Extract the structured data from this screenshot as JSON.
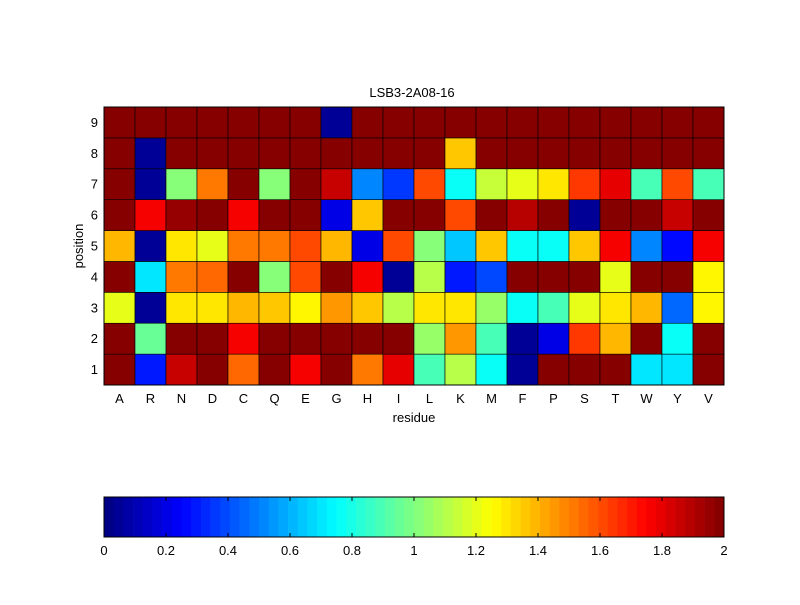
{
  "chart_data": {
    "type": "heatmap",
    "title": "LSB3-2A08-16",
    "xlabel": "residue",
    "ylabel": "position",
    "x_categories": [
      "A",
      "R",
      "N",
      "D",
      "C",
      "Q",
      "E",
      "G",
      "H",
      "I",
      "L",
      "K",
      "M",
      "F",
      "P",
      "S",
      "T",
      "W",
      "Y",
      "V"
    ],
    "y_categories": [
      "1",
      "2",
      "3",
      "4",
      "5",
      "6",
      "7",
      "8",
      "9"
    ],
    "values": [
      [
        2.0,
        0.3,
        1.85,
        2.0,
        1.55,
        2.0,
        1.75,
        2.0,
        1.5,
        1.8,
        0.9,
        1.1,
        0.75,
        0.05,
        2.0,
        2.0,
        2.0,
        0.7,
        0.7,
        2.0
      ],
      [
        2.0,
        0.95,
        2.0,
        2.0,
        1.75,
        2.0,
        2.0,
        2.0,
        2.0,
        2.0,
        1.05,
        1.45,
        0.9,
        0.05,
        0.2,
        1.65,
        1.4,
        2.0,
        0.75,
        2.0
      ],
      [
        1.2,
        0.05,
        1.3,
        1.3,
        1.4,
        1.35,
        1.25,
        1.45,
        1.35,
        1.1,
        1.3,
        1.3,
        1.05,
        0.75,
        0.9,
        1.2,
        1.3,
        1.4,
        0.45,
        1.25
      ],
      [
        2.0,
        0.7,
        1.5,
        1.55,
        2.0,
        1.0,
        1.6,
        2.0,
        1.75,
        0.05,
        1.1,
        0.3,
        0.4,
        2.0,
        2.0,
        2.0,
        1.2,
        2.0,
        2.0,
        1.25
      ],
      [
        1.4,
        0.05,
        1.3,
        1.2,
        1.5,
        1.5,
        1.6,
        1.4,
        0.2,
        1.6,
        1.0,
        0.65,
        1.35,
        0.75,
        0.75,
        1.35,
        1.75,
        0.5,
        0.25,
        1.75
      ],
      [
        2.0,
        1.75,
        1.95,
        2.0,
        1.75,
        2.0,
        2.0,
        0.2,
        1.35,
        2.0,
        2.0,
        1.6,
        2.0,
        1.9,
        2.0,
        0.05,
        2.0,
        2.0,
        1.85,
        2.0
      ],
      [
        2.0,
        0.05,
        1.0,
        1.5,
        2.0,
        1.0,
        2.0,
        1.85,
        0.5,
        0.35,
        1.6,
        0.75,
        1.15,
        1.2,
        1.3,
        1.65,
        1.8,
        0.9,
        1.6,
        0.9
      ],
      [
        2.0,
        0.05,
        2.0,
        2.0,
        2.0,
        2.0,
        2.0,
        2.0,
        2.0,
        2.0,
        2.0,
        1.35,
        2.0,
        2.0,
        2.0,
        2.0,
        2.0,
        2.0,
        2.0,
        2.0
      ],
      [
        2.0,
        2.0,
        2.0,
        2.0,
        2.0,
        2.0,
        2.0,
        0.05,
        2.0,
        2.0,
        2.0,
        2.0,
        2.0,
        2.0,
        2.0,
        2.0,
        2.0,
        2.0,
        2.0,
        2.0
      ]
    ],
    "colorbar": {
      "colormap": "jet",
      "range": [
        0,
        2
      ],
      "ticks": [
        "0",
        "0.2",
        "0.4",
        "0.6",
        "0.8",
        "1",
        "1.2",
        "1.4",
        "1.6",
        "1.8",
        "2"
      ],
      "placement": "bottom"
    },
    "grid": true
  }
}
